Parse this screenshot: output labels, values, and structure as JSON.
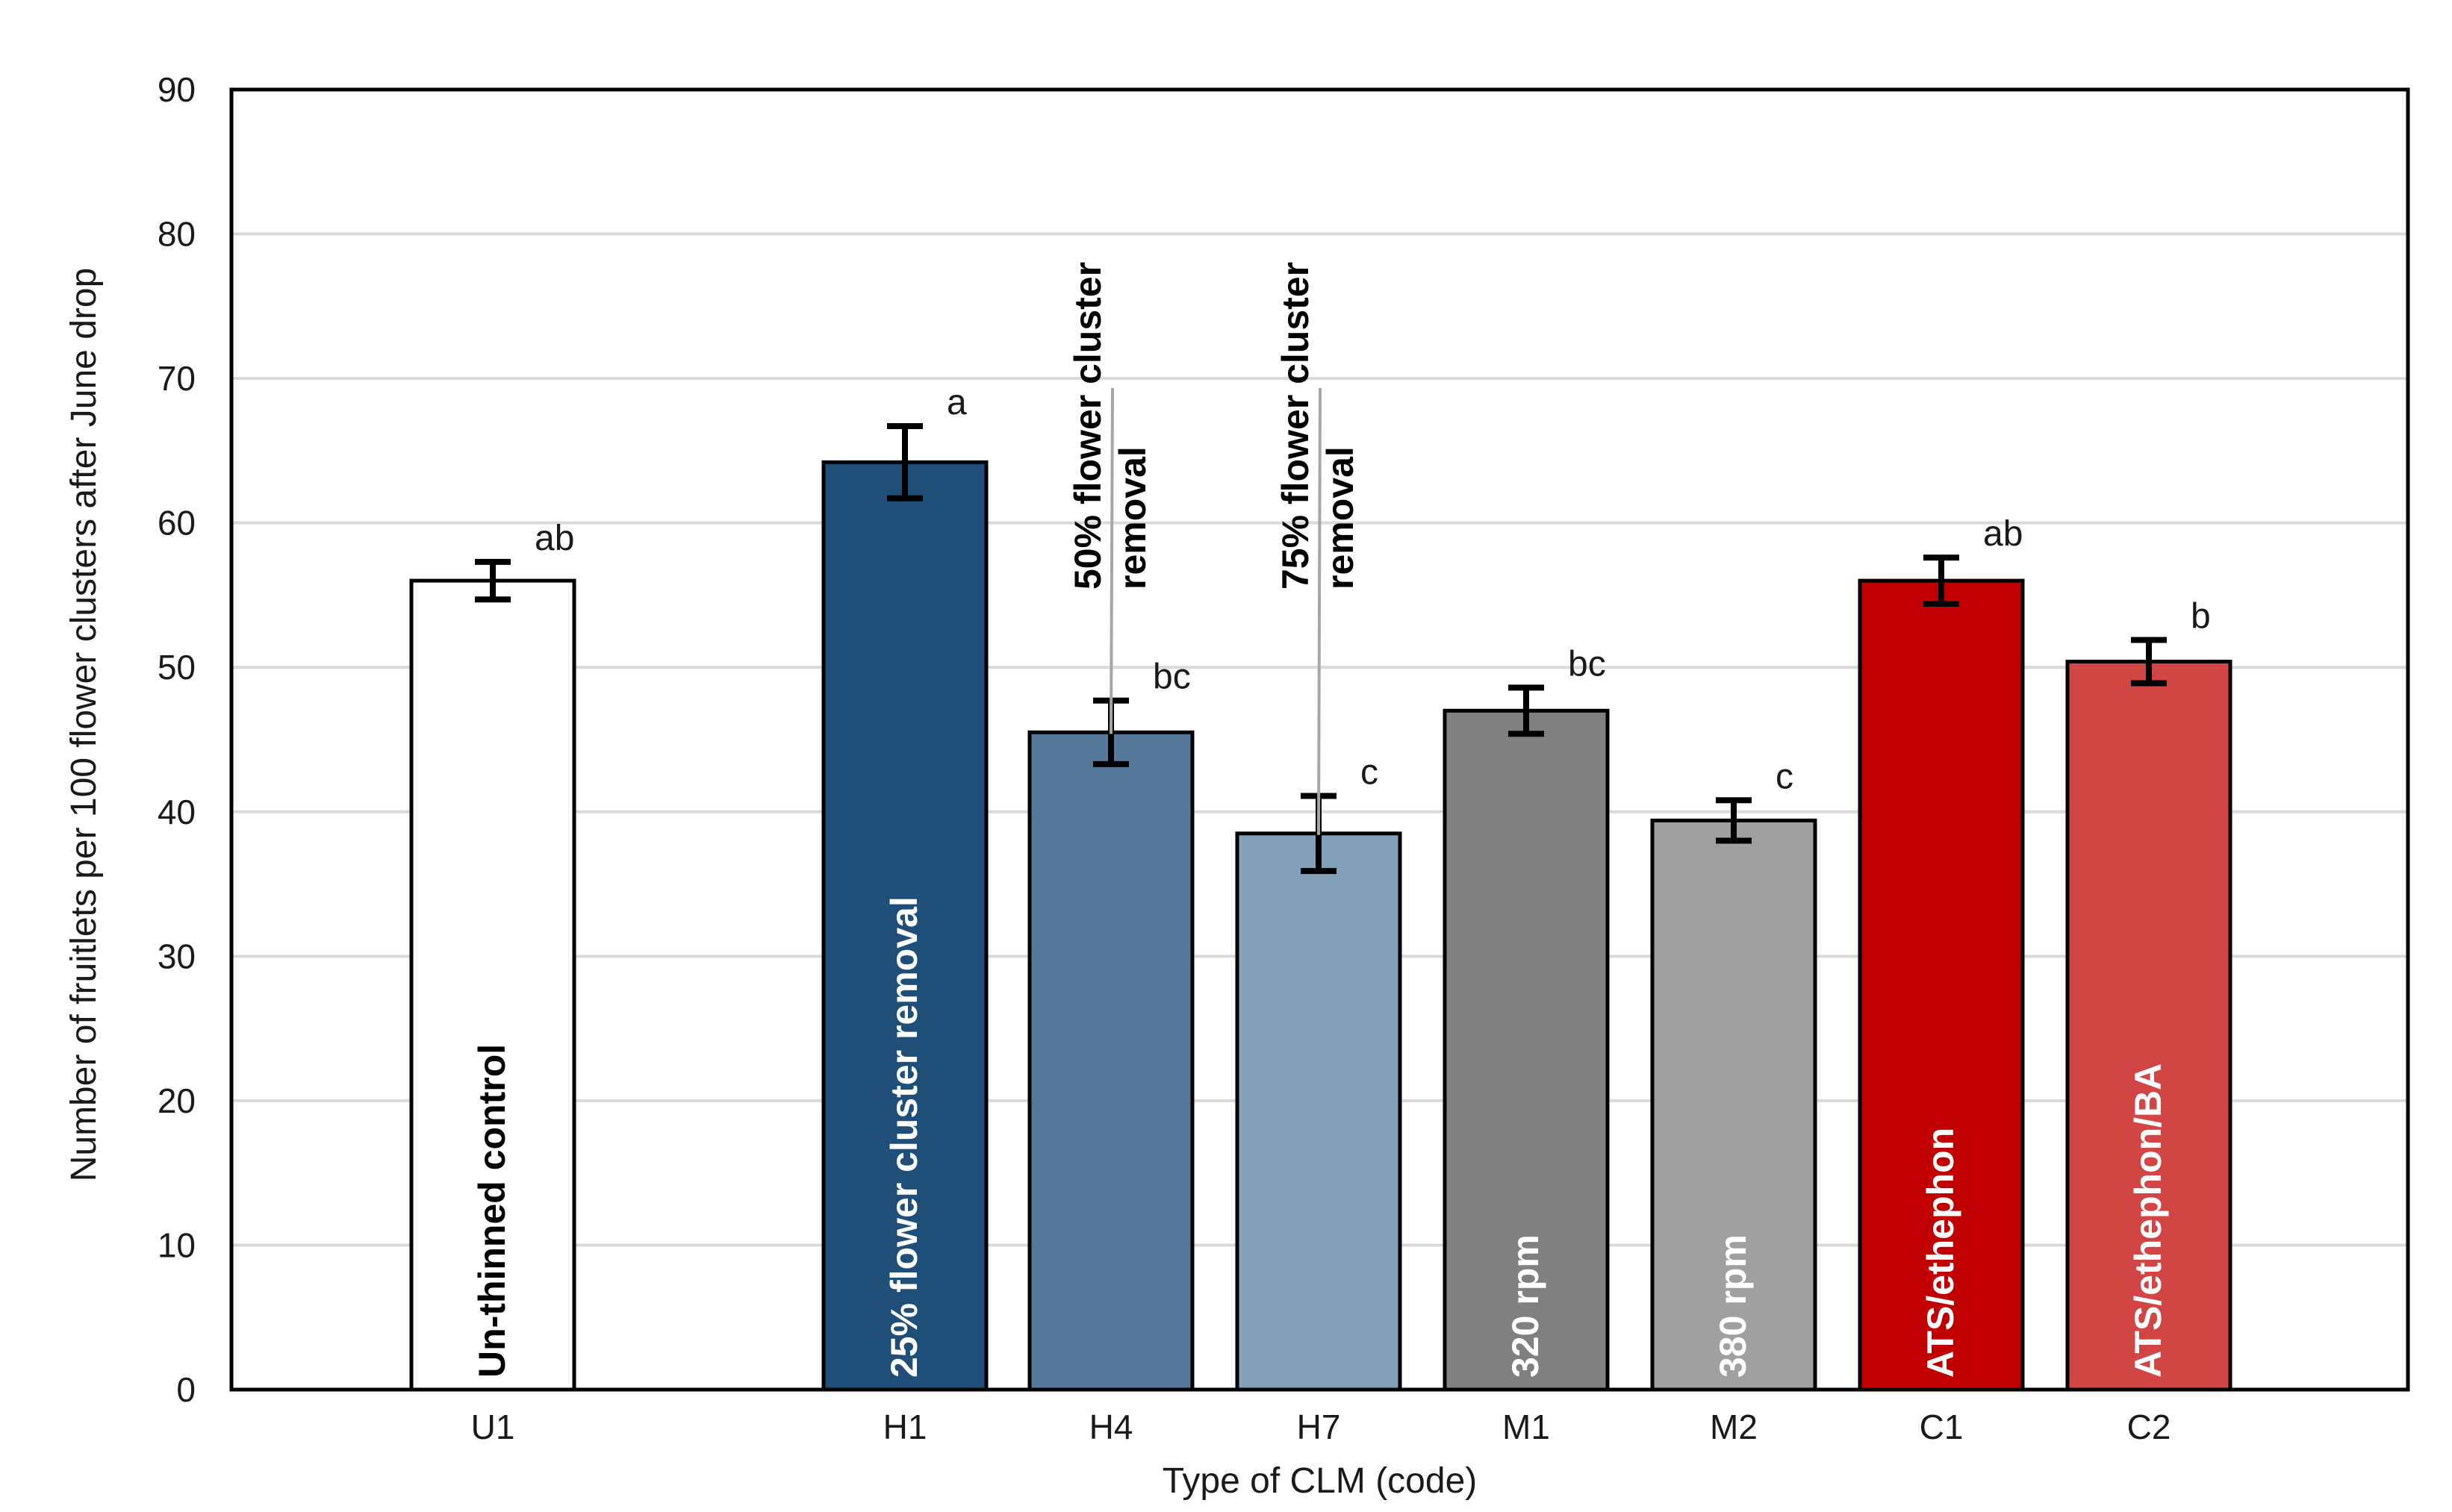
{
  "chart_data": {
    "type": "bar",
    "xlabel": "Type of CLM (code)",
    "ylabel": "Number of fruitlets per 100 flower clusters after June drop",
    "ylim": [
      0,
      90
    ],
    "yticks": [
      0,
      10,
      20,
      30,
      40,
      50,
      60,
      70,
      80,
      90
    ],
    "grid": true,
    "categories": [
      "U1",
      "H1",
      "H4",
      "H7",
      "M1",
      "M2",
      "C1",
      "C2"
    ],
    "values": [
      56,
      64.2,
      45.5,
      38.5,
      47,
      39.4,
      56,
      50.4
    ],
    "errors": [
      1.3,
      2.5,
      2.2,
      2.6,
      1.6,
      1.4,
      1.6,
      1.5
    ],
    "significance": [
      "ab",
      "a",
      "bc",
      "c",
      "bc",
      "c",
      "ab",
      "b"
    ],
    "colors": [
      "#ffffff",
      "#1f4e79",
      "#56789a",
      "#849fba",
      "#808080",
      "#a0a0a0",
      "#c00000",
      "#d24545"
    ],
    "treatment_labels": [
      [
        "Un-thinned control"
      ],
      [
        "25% flower cluster removal"
      ],
      [
        "50% flower cluster",
        "removal"
      ],
      [
        "75% flower cluster",
        "removal"
      ],
      [
        "320 rpm"
      ],
      [
        "380 rpm"
      ],
      [
        "ATS/ethephon"
      ],
      [
        "ATS/ethephon/BA"
      ]
    ]
  }
}
